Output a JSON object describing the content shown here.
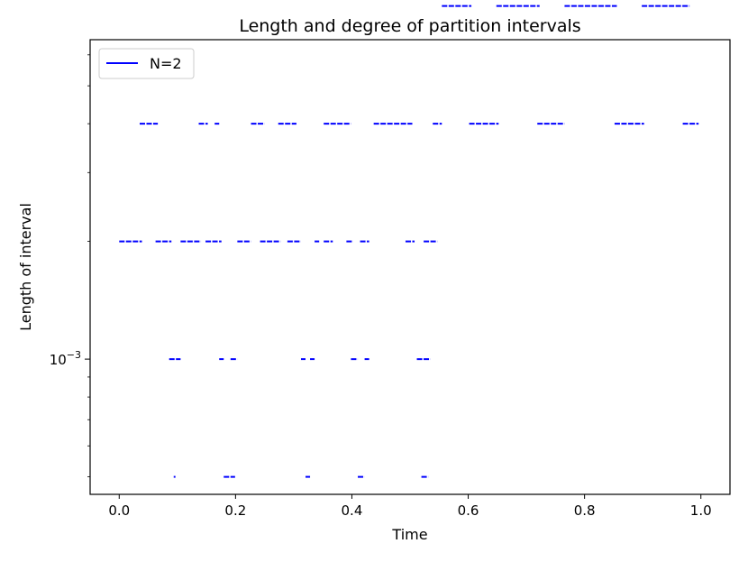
{
  "chart_data": {
    "type": "line",
    "title": "Length and degree of partition intervals",
    "xlabel": "Time",
    "ylabel": "Length of interval",
    "xlim": [
      -0.05,
      1.05
    ],
    "ylim": [
      0.000451,
      0.00656
    ],
    "yscale": "log",
    "xticks": [
      0.0,
      0.2,
      0.4,
      0.6,
      0.8,
      1.0
    ],
    "xtick_labels": [
      "0.0",
      "0.2",
      "0.4",
      "0.6",
      "0.8",
      "1.0"
    ],
    "yticks_major": [
      0.001
    ],
    "ytick_major_labels": [
      {
        "base": "10",
        "exp": "−3"
      }
    ],
    "yticks_minor": [
      0.0005,
      0.0006,
      0.0007,
      0.0008,
      0.0009,
      0.002,
      0.003,
      0.004,
      0.005,
      0.006
    ],
    "legend": {
      "location": "upper left",
      "entries": [
        "N=2"
      ]
    },
    "grid": false,
    "color": "#0000ff",
    "series": [
      {
        "name": "N=2",
        "levels": [
          {
            "length": 0.0005,
            "segments": [
              [
                0.0937,
                0.0967
              ],
              [
                0.1797,
                0.1992
              ],
              [
                0.3203,
                0.3281
              ],
              [
                0.4102,
                0.4219
              ],
              [
                0.5195,
                0.5313
              ]
            ]
          },
          {
            "length": 0.001,
            "segments": [
              [
                0.0859,
                0.1055
              ],
              [
                0.1719,
                0.1797
              ],
              [
                0.1914,
                0.2031
              ],
              [
                0.3125,
                0.3203
              ],
              [
                0.3281,
                0.3359
              ],
              [
                0.3984,
                0.4102
              ],
              [
                0.4219,
                0.4297
              ],
              [
                0.5117,
                0.5351
              ]
            ]
          },
          {
            "length": 0.002,
            "segments": [
              [
                0.0,
                0.0391
              ],
              [
                0.0625,
                0.0898
              ],
              [
                0.1055,
                0.1406
              ],
              [
                0.1484,
                0.1758
              ],
              [
                0.2031,
                0.2266
              ],
              [
                0.2422,
                0.2773
              ],
              [
                0.2891,
                0.3125
              ],
              [
                0.3359,
                0.3438
              ],
              [
                0.3516,
                0.3672
              ],
              [
                0.3906,
                0.4023
              ],
              [
                0.4141,
                0.4297
              ],
              [
                0.4922,
                0.5078
              ],
              [
                0.5234,
                0.5469
              ]
            ]
          },
          {
            "length": 0.004,
            "segments": [
              [
                0.0352,
                0.0664
              ],
              [
                0.1367,
                0.1523
              ],
              [
                0.1641,
                0.1719
              ],
              [
                0.2266,
                0.25
              ],
              [
                0.2734,
                0.3047
              ],
              [
                0.3516,
                0.3984
              ],
              [
                0.4375,
                0.5039
              ],
              [
                0.5391,
                0.5547
              ],
              [
                0.6016,
                0.6523
              ],
              [
                0.7188,
                0.7656
              ],
              [
                0.8516,
                0.9023
              ],
              [
                0.9688,
                0.9961
              ]
            ]
          },
          {
            "length": 0.008,
            "segments": [
              [
                0.5547,
                0.6055
              ],
              [
                0.6484,
                0.7227
              ],
              [
                0.7656,
                0.8555
              ],
              [
                0.8984,
                0.9805
              ]
            ]
          }
        ]
      }
    ]
  }
}
